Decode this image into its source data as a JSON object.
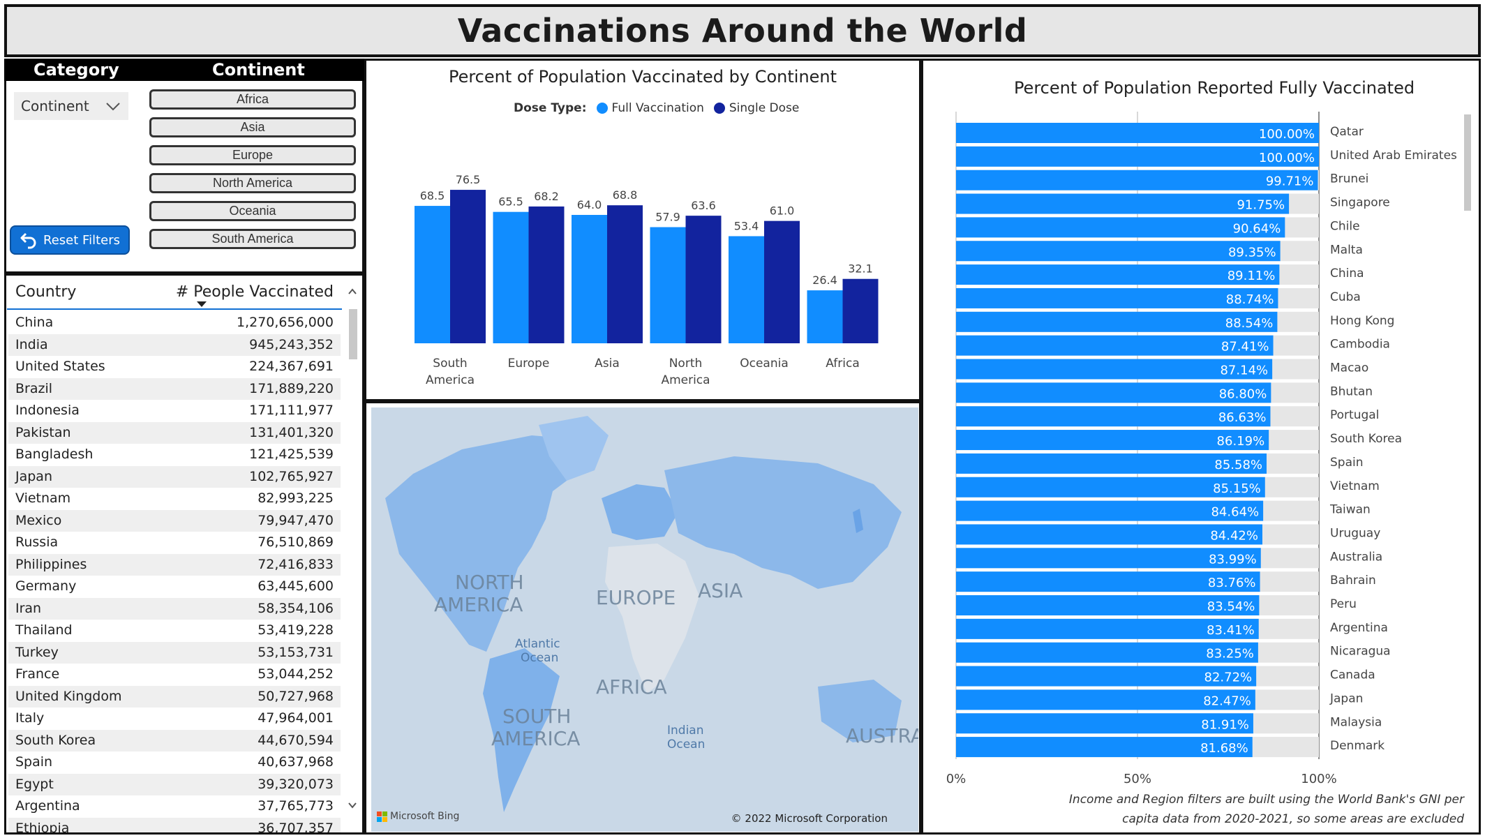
{
  "title": "Vaccinations Around the World",
  "slicers": {
    "category_header": "Category",
    "continent_header": "Continent",
    "category_value": "Continent",
    "continents": [
      "Africa",
      "Asia",
      "Europe",
      "North America",
      "Oceania",
      "South America"
    ],
    "reset_label": "Reset Filters"
  },
  "table": {
    "col_country": "Country",
    "col_people": "# People Vaccinated",
    "rows": [
      {
        "country": "China",
        "value": "1,270,656,000"
      },
      {
        "country": "India",
        "value": "945,243,352"
      },
      {
        "country": "United States",
        "value": "224,367,691"
      },
      {
        "country": "Brazil",
        "value": "171,889,220"
      },
      {
        "country": "Indonesia",
        "value": "171,111,977"
      },
      {
        "country": "Pakistan",
        "value": "131,401,320"
      },
      {
        "country": "Bangladesh",
        "value": "121,425,539"
      },
      {
        "country": "Japan",
        "value": "102,765,927"
      },
      {
        "country": "Vietnam",
        "value": "82,993,225"
      },
      {
        "country": "Mexico",
        "value": "79,947,470"
      },
      {
        "country": "Russia",
        "value": "76,510,869"
      },
      {
        "country": "Philippines",
        "value": "72,416,833"
      },
      {
        "country": "Germany",
        "value": "63,445,600"
      },
      {
        "country": "Iran",
        "value": "58,354,106"
      },
      {
        "country": "Thailand",
        "value": "53,419,228"
      },
      {
        "country": "Turkey",
        "value": "53,153,731"
      },
      {
        "country": "France",
        "value": "53,044,252"
      },
      {
        "country": "United Kingdom",
        "value": "50,727,968"
      },
      {
        "country": "Italy",
        "value": "47,964,001"
      },
      {
        "country": "South Korea",
        "value": "44,670,594"
      },
      {
        "country": "Spain",
        "value": "40,637,968"
      },
      {
        "country": "Egypt",
        "value": "39,320,073"
      },
      {
        "country": "Argentina",
        "value": "37,765,773"
      },
      {
        "country": "Ethiopia",
        "value": "36,707,357"
      }
    ]
  },
  "map": {
    "labels": [
      "NORTH AMERICA",
      "EUROPE",
      "ASIA",
      "Atlantic Ocean",
      "AFRICA",
      "SOUTH AMERICA",
      "Indian Ocean",
      "AUSTRA"
    ],
    "brand": "Microsoft Bing",
    "copyright": "© 2022 Microsoft Corporation"
  },
  "note": "Income and Region filters are built using the World Bank's GNI per capita data from 2020-2021, so some areas are excluded",
  "colors": {
    "full": "#118dff",
    "single": "#12239e",
    "track": "#e6e6e6"
  },
  "chart_data": [
    {
      "type": "bar",
      "title": "Percent of Population Vaccinated by Continent",
      "legend_title": "Dose Type:",
      "categories": [
        "South America",
        "Europe",
        "Asia",
        "North America",
        "Oceania",
        "Africa"
      ],
      "series": [
        {
          "name": "Full Vaccination",
          "values": [
            68.5,
            65.5,
            64.0,
            57.9,
            53.4,
            26.4
          ]
        },
        {
          "name": "Single Dose",
          "values": [
            76.5,
            68.2,
            68.8,
            63.6,
            61.0,
            32.1
          ]
        }
      ],
      "ylim": [
        0,
        80
      ]
    },
    {
      "type": "bar",
      "orientation": "horizontal",
      "title": "Percent of Population Reported Fully Vaccinated",
      "categories": [
        "Qatar",
        "United Arab Emirates",
        "Brunei",
        "Singapore",
        "Chile",
        "Malta",
        "China",
        "Cuba",
        "Hong Kong",
        "Cambodia",
        "Macao",
        "Bhutan",
        "Portugal",
        "South Korea",
        "Spain",
        "Vietnam",
        "Taiwan",
        "Uruguay",
        "Australia",
        "Bahrain",
        "Peru",
        "Argentina",
        "Nicaragua",
        "Canada",
        "Japan",
        "Malaysia",
        "Denmark"
      ],
      "values": [
        100.0,
        100.0,
        99.71,
        91.75,
        90.64,
        89.35,
        89.11,
        88.74,
        88.54,
        87.41,
        87.14,
        86.8,
        86.63,
        86.19,
        85.58,
        85.15,
        84.64,
        84.42,
        83.99,
        83.76,
        83.54,
        83.41,
        83.25,
        82.72,
        82.47,
        81.91,
        81.68
      ],
      "xticks": [
        "0%",
        "50%",
        "100%"
      ],
      "xlim": [
        0,
        100
      ]
    }
  ]
}
